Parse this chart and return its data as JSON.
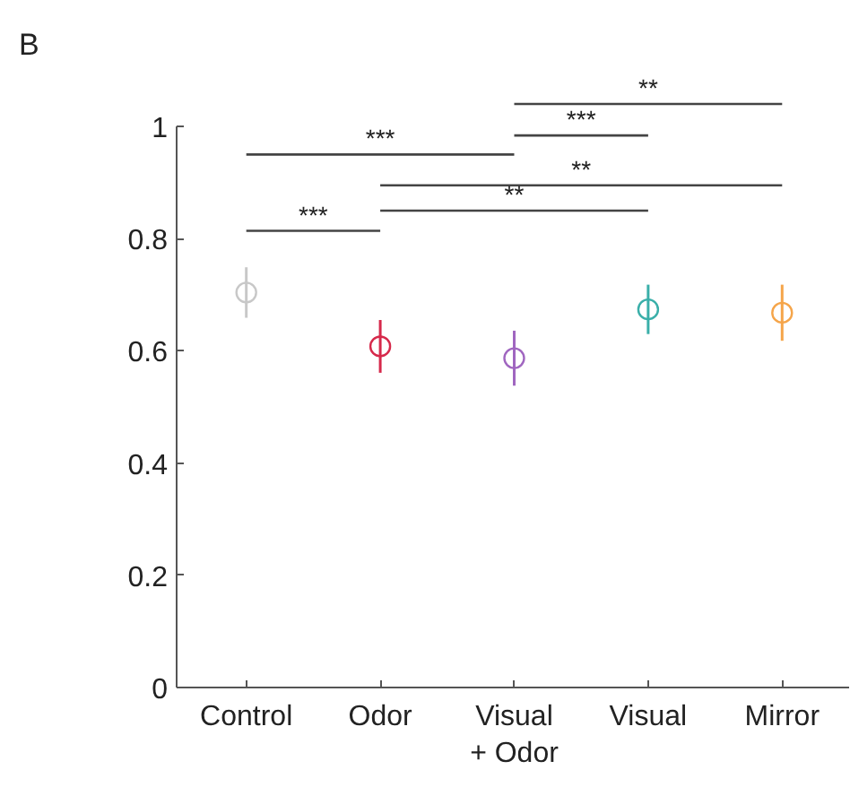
{
  "chart_data": {
    "type": "scatter",
    "categories": [
      "Control",
      "Odor",
      "Visual\n+ Odor",
      "Visual",
      "Mirror"
    ],
    "values": [
      0.704,
      0.608,
      0.587,
      0.674,
      0.668
    ],
    "errors": [
      0.045,
      0.047,
      0.049,
      0.044,
      0.05
    ],
    "colors": [
      "#c8c8c8",
      "#d6294b",
      "#a066c0",
      "#3aafa9",
      "#f5a54a"
    ],
    "marker": "circle",
    "ylim": [
      0,
      1
    ],
    "yticks": [
      0,
      0.2,
      0.4,
      0.6,
      0.8,
      1
    ],
    "grid": false,
    "annotations": [
      "B",
      "***",
      "***",
      "**",
      "**",
      "***",
      "**"
    ]
  }
}
